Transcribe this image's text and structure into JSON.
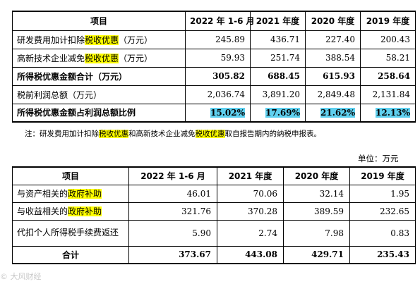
{
  "table1": {
    "headers": [
      "项目",
      "2022 年 1-6 月",
      "2021 年度",
      "2020 年度",
      "2019 年度"
    ],
    "rows": [
      {
        "pre": "研发费用加计扣除",
        "hl": "税收优惠",
        "post": "（万元）",
        "values": [
          "245.89",
          "436.71",
          "227.40",
          "200.43"
        ]
      },
      {
        "pre": "高新技术企业减免",
        "hl": "税收优惠",
        "post": "（万元）",
        "values": [
          "59.93",
          "251.74",
          "388.54",
          "58.21"
        ]
      },
      {
        "label": "所得税优惠金额合计（万元）",
        "values": [
          "305.82",
          "688.45",
          "615.93",
          "258.64"
        ]
      },
      {
        "label": "税前利润总额（万元）",
        "values": [
          "2,036.74",
          "3,891.20",
          "2,849.48",
          "2,131.84"
        ]
      },
      {
        "label": "所得税优惠金额占利润总额比例",
        "values": [
          "15.02%",
          "17.69%",
          "21.62%",
          "12.13%"
        ]
      }
    ]
  },
  "note": {
    "a": "注：研发费用加计扣除",
    "b": "税收优惠",
    "c": "和高新技术企业减免",
    "d": "税收优惠",
    "e": "取自报告期内的纳税申报表。"
  },
  "unit": "单位：万元",
  "table2": {
    "headers": [
      "项目",
      "2022 年 1-6 月",
      "2021 年度",
      "2020 年度",
      "2019 年度"
    ],
    "rows": [
      {
        "pre": "与资产相关的",
        "hl": "政府补助",
        "values": [
          "46.01",
          "70.06",
          "32.14",
          "1.95"
        ]
      },
      {
        "pre": "与收益相关的",
        "hl": "政府补助",
        "values": [
          "321.76",
          "370.28",
          "389.59",
          "232.65"
        ]
      },
      {
        "label": "代扣个人所得税手续费返还",
        "values": [
          "5.90",
          "2.74",
          "7.98",
          "0.83"
        ]
      },
      {
        "label": "合计",
        "values": [
          "373.67",
          "443.08",
          "429.71",
          "235.43"
        ]
      }
    ]
  },
  "watermark": "© 大风财经"
}
